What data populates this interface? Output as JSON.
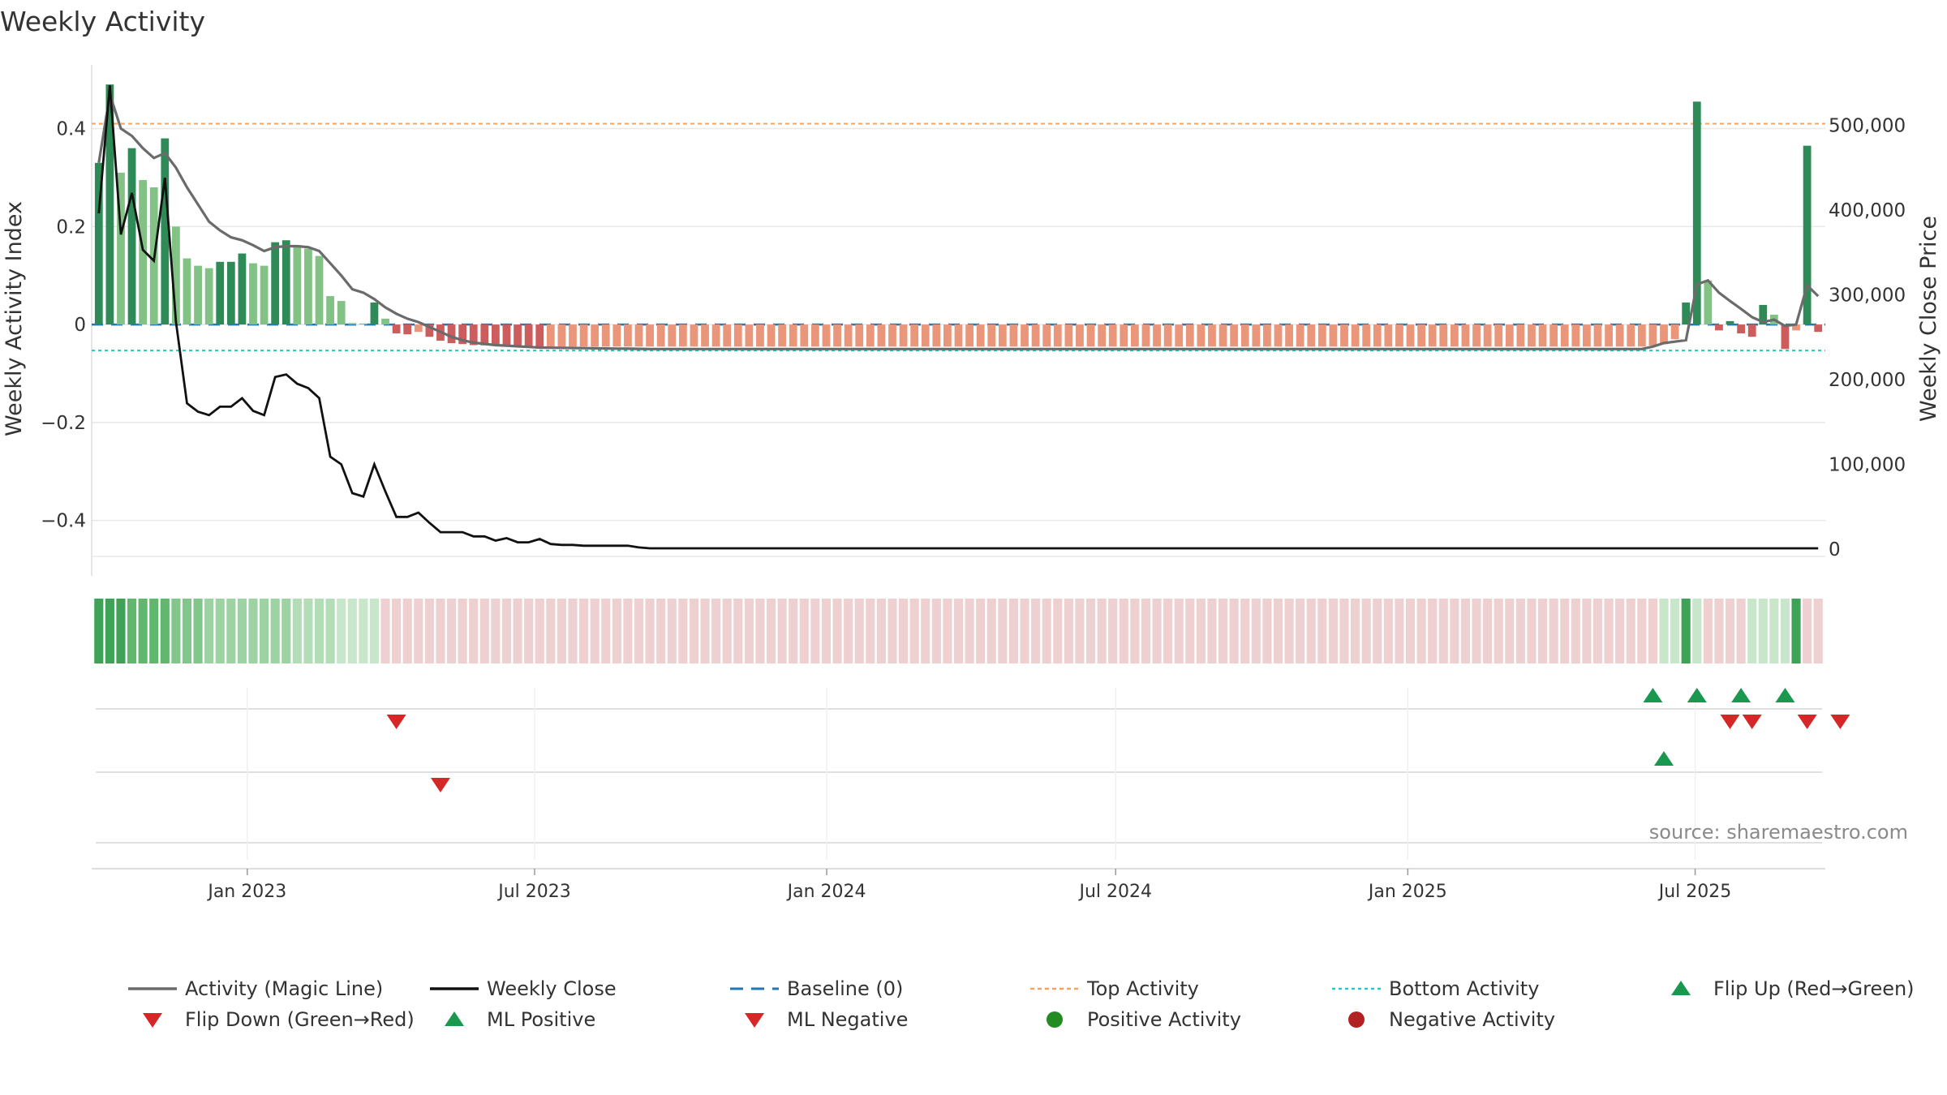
{
  "title": "Weekly Activity",
  "source": "source: sharemaestro.com",
  "colors": {
    "green_dark": "#2e8b57",
    "green_light": "#82c285",
    "red_dark": "#cd5c5c",
    "red_light": "#e9967a",
    "magic_line": "#6b6b6b",
    "close": "#111111",
    "baseline": "#1f77b4",
    "top": "#f4a460",
    "bottom": "#20c9c9",
    "flip_up": "#1a9850",
    "flip_down": "#d62728"
  },
  "chart_data": {
    "type": "bar",
    "title": "Weekly Activity",
    "ylabel": "Weekly Activity Index",
    "y2label": "Weekly Close Price",
    "ylim": [
      -0.48,
      0.53
    ],
    "y2lim": [
      0,
      550000
    ],
    "yticks": [
      0.4,
      0.2,
      0,
      -0.2,
      -0.4
    ],
    "ytick_labels": [
      "0.4",
      "0.2",
      "0",
      "−0.2",
      "−0.4"
    ],
    "y2ticks": [
      500000,
      400000,
      300000,
      200000,
      100000,
      0
    ],
    "y2tick_labels": [
      "500,000",
      "400,000",
      "300,000",
      "200,000",
      "100,000",
      "0"
    ],
    "x_start": "2022-09-25",
    "x_end": "2025-09-21",
    "xtick_dates": [
      "2023-01-01",
      "2023-07-01",
      "2024-01-01",
      "2024-07-01",
      "2025-01-01",
      "2025-07-01"
    ],
    "xtick_labels": [
      "Jan 2023",
      "Jul 2023",
      "Jan 2024",
      "Jul 2024",
      "Jan 2025",
      "Jul 2025"
    ],
    "top_activity": 0.41,
    "bottom_activity": -0.053,
    "baseline": 0,
    "n_weeks": 157,
    "activity_anchors": [
      [
        0,
        0.33
      ],
      [
        1,
        0.49
      ],
      [
        2,
        0.31
      ],
      [
        3,
        0.36
      ],
      [
        4,
        0.295
      ],
      [
        5,
        0.28
      ],
      [
        6,
        0.38
      ],
      [
        7,
        0.2
      ],
      [
        8,
        0.135
      ],
      [
        9,
        0.12
      ],
      [
        10,
        0.115
      ],
      [
        11,
        0.128
      ],
      [
        12,
        0.128
      ],
      [
        13,
        0.145
      ],
      [
        14,
        0.125
      ],
      [
        15,
        0.12
      ],
      [
        16,
        0.168
      ],
      [
        17,
        0.172
      ],
      [
        18,
        0.16
      ],
      [
        19,
        0.155
      ],
      [
        20,
        0.14
      ],
      [
        21,
        0.058
      ],
      [
        22,
        0.048
      ],
      [
        23,
        0.003
      ],
      [
        24,
        0.002
      ],
      [
        25,
        0.045
      ],
      [
        26,
        0.012
      ],
      [
        27,
        -0.018
      ],
      [
        28,
        -0.02
      ],
      [
        29,
        -0.015
      ],
      [
        30,
        -0.025
      ],
      [
        31,
        -0.033
      ],
      [
        32,
        -0.038
      ],
      [
        33,
        -0.04
      ],
      [
        34,
        -0.042
      ],
      [
        40,
        -0.045
      ],
      [
        140,
        -0.045
      ],
      [
        141,
        -0.043
      ],
      [
        142,
        -0.04
      ],
      [
        143,
        -0.03
      ],
      [
        144,
        0.045
      ],
      [
        145,
        0.455
      ],
      [
        146,
        0.09
      ],
      [
        147,
        -0.012
      ],
      [
        148,
        0.007
      ],
      [
        149,
        -0.018
      ],
      [
        150,
        -0.025
      ],
      [
        151,
        0.04
      ],
      [
        152,
        0.02
      ],
      [
        153,
        -0.05
      ],
      [
        154,
        -0.012
      ],
      [
        155,
        0.365
      ],
      [
        156,
        -0.015
      ],
      [
        157,
        -0.022
      ]
    ],
    "magic_anchors": [
      [
        0,
        0.33
      ],
      [
        1,
        0.47
      ],
      [
        2,
        0.4
      ],
      [
        3,
        0.385
      ],
      [
        4,
        0.36
      ],
      [
        5,
        0.34
      ],
      [
        6,
        0.35
      ],
      [
        7,
        0.32
      ],
      [
        8,
        0.28
      ],
      [
        9,
        0.245
      ],
      [
        10,
        0.21
      ],
      [
        11,
        0.192
      ],
      [
        12,
        0.178
      ],
      [
        13,
        0.172
      ],
      [
        14,
        0.162
      ],
      [
        15,
        0.15
      ],
      [
        16,
        0.158
      ],
      [
        17,
        0.16
      ],
      [
        18,
        0.16
      ],
      [
        19,
        0.158
      ],
      [
        20,
        0.15
      ],
      [
        21,
        0.125
      ],
      [
        22,
        0.1
      ],
      [
        23,
        0.072
      ],
      [
        24,
        0.065
      ],
      [
        25,
        0.052
      ],
      [
        26,
        0.035
      ],
      [
        27,
        0.022
      ],
      [
        28,
        0.012
      ],
      [
        29,
        0.005
      ],
      [
        30,
        -0.005
      ],
      [
        31,
        -0.015
      ],
      [
        32,
        -0.025
      ],
      [
        33,
        -0.032
      ],
      [
        34,
        -0.037
      ],
      [
        36,
        -0.042
      ],
      [
        40,
        -0.047
      ],
      [
        50,
        -0.05
      ],
      [
        140,
        -0.05
      ],
      [
        141,
        -0.045
      ],
      [
        142,
        -0.038
      ],
      [
        143,
        -0.035
      ],
      [
        144,
        -0.032
      ],
      [
        145,
        0.082
      ],
      [
        146,
        0.09
      ],
      [
        147,
        0.065
      ],
      [
        148,
        0.048
      ],
      [
        149,
        0.032
      ],
      [
        150,
        0.015
      ],
      [
        151,
        0.005
      ],
      [
        152,
        0.01
      ],
      [
        153,
        -0.003
      ],
      [
        154,
        0.0
      ],
      [
        155,
        0.08
      ],
      [
        156,
        0.058
      ],
      [
        157,
        0.03
      ]
    ],
    "close_anchors": [
      [
        0,
        396000
      ],
      [
        1,
        547000
      ],
      [
        2,
        371000
      ],
      [
        3,
        420000
      ],
      [
        4,
        353000
      ],
      [
        5,
        340000
      ],
      [
        6,
        438000
      ],
      [
        7,
        268000
      ],
      [
        8,
        172000
      ],
      [
        9,
        162000
      ],
      [
        10,
        158000
      ],
      [
        11,
        168000
      ],
      [
        12,
        168000
      ],
      [
        13,
        178000
      ],
      [
        14,
        163000
      ],
      [
        15,
        158000
      ],
      [
        16,
        203000
      ],
      [
        17,
        206000
      ],
      [
        18,
        195000
      ],
      [
        19,
        190000
      ],
      [
        20,
        178000
      ],
      [
        21,
        109000
      ],
      [
        22,
        100000
      ],
      [
        23,
        66000
      ],
      [
        24,
        62000
      ],
      [
        25,
        100000
      ],
      [
        26,
        68000
      ],
      [
        27,
        38000
      ],
      [
        28,
        38000
      ],
      [
        29,
        43000
      ],
      [
        30,
        31000
      ],
      [
        31,
        20000
      ],
      [
        32,
        20000
      ],
      [
        33,
        20000
      ],
      [
        34,
        15000
      ],
      [
        35,
        15000
      ],
      [
        36,
        10000
      ],
      [
        37,
        13000
      ],
      [
        38,
        8000
      ],
      [
        39,
        8000
      ],
      [
        40,
        12000
      ],
      [
        41,
        6000
      ],
      [
        42,
        5000
      ],
      [
        43,
        5000
      ],
      [
        44,
        4000
      ],
      [
        48,
        4000
      ],
      [
        49,
        2000
      ],
      [
        50,
        1000
      ],
      [
        157,
        1000
      ]
    ],
    "strip_pos_shades": [
      [
        "#3fa357",
        0,
        3
      ],
      [
        "#5fb86d",
        3,
        7
      ],
      [
        "#82c68b",
        7,
        10
      ],
      [
        "#9dd2a3",
        10,
        18
      ],
      [
        "#b2ddb7",
        18,
        22
      ],
      [
        "#c8e6c9",
        22,
        26
      ]
    ],
    "strip_neg_shade": "#efd0d0",
    "strip_specials": [
      [
        142,
        "#c8e6c9"
      ],
      [
        143,
        "#c8e6c9"
      ],
      [
        144,
        "#3fa357"
      ],
      [
        145,
        "#c8e6c9"
      ],
      [
        150,
        "#c8e6c9"
      ],
      [
        151,
        "#c8e6c9"
      ],
      [
        152,
        "#c8e6c9"
      ],
      [
        153,
        "#c8e6c9"
      ],
      [
        154,
        "#3fa357"
      ]
    ],
    "flip_up_weeks": [
      141,
      145,
      149,
      153
    ],
    "flip_down_weeks": [
      27,
      148,
      150,
      155,
      158
    ],
    "ml_positive_weeks": [
      142
    ],
    "ml_negative_weeks": [
      31
    ],
    "legend": [
      "Activity (Magic Line)",
      "Weekly Close",
      "Baseline (0)",
      "Top Activity",
      "Bottom Activity",
      "Flip Up (Red→Green)",
      "Flip Down (Green→Red)",
      "ML Positive",
      "ML Negative",
      "Positive Activity",
      "Negative Activity"
    ]
  }
}
